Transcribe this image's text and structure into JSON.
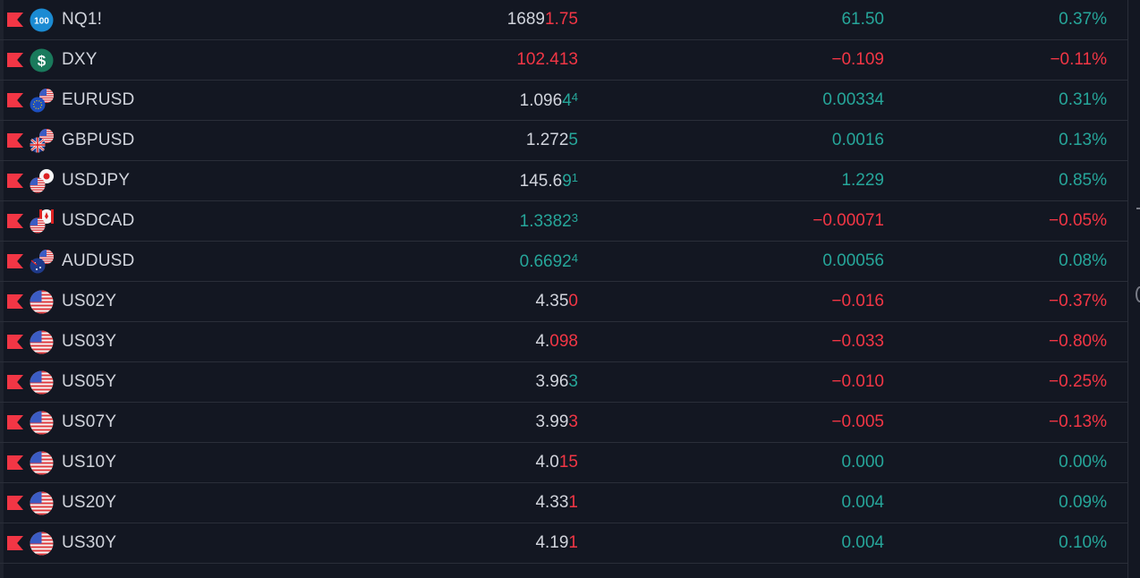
{
  "colors": {
    "background": "#131722",
    "up": "#26a69a",
    "down": "#f23645",
    "text": "#d1d4dc",
    "divider": "#2a2e39",
    "flag": "#f23645"
  },
  "rows": [
    {
      "symbol": "NQ1!",
      "icon": "nasdaq-100-icon",
      "last_main": "1689",
      "last_tail": "1.75",
      "last_sup": "",
      "last_main_dir": "neutral",
      "last_tail_dir": "down",
      "change": "61.50",
      "change_pct": "0.37%",
      "dir": "up"
    },
    {
      "symbol": "DXY",
      "icon": "dollar-index-icon",
      "last_main": "102.413",
      "last_tail": "",
      "last_sup": "",
      "last_main_dir": "down",
      "last_tail_dir": "down",
      "change": "−0.109",
      "change_pct": "−0.11%",
      "dir": "down"
    },
    {
      "symbol": "EURUSD",
      "icon": "eur-usd-flags-icon",
      "last_main": "1.096",
      "last_tail": "4",
      "last_sup": "4",
      "last_main_dir": "neutral",
      "last_tail_dir": "up",
      "change": "0.00334",
      "change_pct": "0.31%",
      "dir": "up"
    },
    {
      "symbol": "GBPUSD",
      "icon": "gbp-usd-flags-icon",
      "last_main": "1.272",
      "last_tail": "5",
      "last_sup": "",
      "last_main_dir": "neutral",
      "last_tail_dir": "up",
      "change": "0.0016",
      "change_pct": "0.13%",
      "dir": "up"
    },
    {
      "symbol": "USDJPY",
      "icon": "usd-jpy-flags-icon",
      "last_main": "145.6",
      "last_tail": "9",
      "last_sup": "1",
      "last_main_dir": "neutral",
      "last_tail_dir": "up",
      "change": "1.229",
      "change_pct": "0.85%",
      "dir": "up"
    },
    {
      "symbol": "USDCAD",
      "icon": "usd-cad-flags-icon",
      "last_main": "1.3382",
      "last_tail": "",
      "last_sup": "3",
      "last_main_dir": "up",
      "last_tail_dir": "up",
      "change": "−0.00071",
      "change_pct": "−0.05%",
      "dir": "down"
    },
    {
      "symbol": "AUDUSD",
      "icon": "aud-usd-flags-icon",
      "last_main": "0.6692",
      "last_tail": "",
      "last_sup": "4",
      "last_main_dir": "up",
      "last_tail_dir": "up",
      "change": "0.00056",
      "change_pct": "0.08%",
      "dir": "up"
    },
    {
      "symbol": "US02Y",
      "icon": "us-flag-icon",
      "last_main": "4.35",
      "last_tail": "0",
      "last_sup": "",
      "last_main_dir": "neutral",
      "last_tail_dir": "down",
      "change": "−0.016",
      "change_pct": "−0.37%",
      "dir": "down"
    },
    {
      "symbol": "US03Y",
      "icon": "us-flag-icon",
      "last_main": "4.",
      "last_tail": "098",
      "last_sup": "",
      "last_main_dir": "neutral",
      "last_tail_dir": "down",
      "change": "−0.033",
      "change_pct": "−0.80%",
      "dir": "down"
    },
    {
      "symbol": "US05Y",
      "icon": "us-flag-icon",
      "last_main": "3.96",
      "last_tail": "3",
      "last_sup": "",
      "last_main_dir": "neutral",
      "last_tail_dir": "up",
      "change": "−0.010",
      "change_pct": "−0.25%",
      "dir": "down"
    },
    {
      "symbol": "US07Y",
      "icon": "us-flag-icon",
      "last_main": "3.99",
      "last_tail": "3",
      "last_sup": "",
      "last_main_dir": "neutral",
      "last_tail_dir": "down",
      "change": "−0.005",
      "change_pct": "−0.13%",
      "dir": "down"
    },
    {
      "symbol": "US10Y",
      "icon": "us-flag-icon",
      "last_main": "4.0",
      "last_tail": "15",
      "last_sup": "",
      "last_main_dir": "neutral",
      "last_tail_dir": "down",
      "change": "0.000",
      "change_pct": "0.00%",
      "dir": "up"
    },
    {
      "symbol": "US20Y",
      "icon": "us-flag-icon",
      "last_main": "4.33",
      "last_tail": "1",
      "last_sup": "",
      "last_main_dir": "neutral",
      "last_tail_dir": "down",
      "change": "0.004",
      "change_pct": "0.09%",
      "dir": "up"
    },
    {
      "symbol": "US30Y",
      "icon": "us-flag-icon",
      "last_main": "4.19",
      "last_tail": "1",
      "last_sup": "",
      "last_main_dir": "neutral",
      "last_tail_dir": "down",
      "change": "0.004",
      "change_pct": "0.10%",
      "dir": "up"
    }
  ]
}
